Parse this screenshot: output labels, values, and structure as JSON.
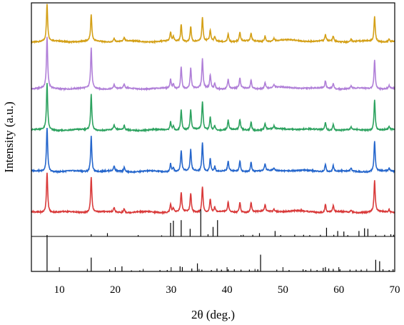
{
  "chart_data": {
    "type": "line",
    "xlabel": "2θ (deg.)",
    "ylabel": "Intensity (a.u.)",
    "xlim": [
      5,
      70
    ],
    "x_ticks": [
      10,
      20,
      30,
      40,
      50,
      60,
      70
    ],
    "y_tick_labels": "none",
    "grid": false,
    "legend": "none",
    "series": [
      {
        "color": "#d4a017",
        "panel": "patterns",
        "stack_index": 4,
        "baseline": 0,
        "peaks": [
          [
            7.8,
            1.3
          ],
          [
            15.7,
            0.92
          ],
          [
            19.8,
            0.13
          ],
          [
            21.6,
            0.12
          ],
          [
            29.9,
            0.3
          ],
          [
            30.4,
            0.14
          ],
          [
            31.8,
            0.6
          ],
          [
            33.5,
            0.55
          ],
          [
            35.6,
            0.82
          ],
          [
            37.0,
            0.38
          ],
          [
            37.8,
            0.15
          ],
          [
            40.2,
            0.28
          ],
          [
            42.3,
            0.32
          ],
          [
            44.3,
            0.28
          ],
          [
            46.8,
            0.2
          ],
          [
            48.4,
            0.1
          ],
          [
            57.6,
            0.22
          ],
          [
            59.0,
            0.18
          ],
          [
            62.2,
            0.09
          ],
          [
            66.4,
            0.88
          ],
          [
            69.0,
            0.1
          ]
        ]
      },
      {
        "color": "#b07fd8",
        "panel": "patterns",
        "stack_index": 3,
        "baseline": 0,
        "peaks": [
          [
            7.8,
            1.8
          ],
          [
            15.7,
            1.42
          ],
          [
            19.8,
            0.15
          ],
          [
            21.6,
            0.14
          ],
          [
            29.9,
            0.32
          ],
          [
            30.4,
            0.15
          ],
          [
            31.8,
            0.78
          ],
          [
            33.5,
            0.72
          ],
          [
            35.6,
            1.02
          ],
          [
            37.0,
            0.48
          ],
          [
            37.8,
            0.18
          ],
          [
            40.2,
            0.34
          ],
          [
            42.3,
            0.36
          ],
          [
            44.3,
            0.3
          ],
          [
            46.8,
            0.22
          ],
          [
            48.4,
            0.1
          ],
          [
            57.6,
            0.26
          ],
          [
            59.0,
            0.2
          ],
          [
            62.2,
            0.09
          ],
          [
            66.4,
            1.02
          ],
          [
            69.0,
            0.1
          ]
        ]
      },
      {
        "color": "#2ca25f",
        "panel": "patterns",
        "stack_index": 2,
        "baseline": 0,
        "peaks": [
          [
            7.8,
            1.62
          ],
          [
            15.7,
            1.25
          ],
          [
            19.8,
            0.16
          ],
          [
            21.6,
            0.14
          ],
          [
            29.9,
            0.3
          ],
          [
            30.4,
            0.14
          ],
          [
            31.8,
            0.72
          ],
          [
            33.5,
            0.7
          ],
          [
            35.6,
            0.98
          ],
          [
            37.0,
            0.46
          ],
          [
            37.8,
            0.17
          ],
          [
            40.2,
            0.34
          ],
          [
            42.3,
            0.36
          ],
          [
            44.3,
            0.3
          ],
          [
            46.8,
            0.22
          ],
          [
            48.4,
            0.1
          ],
          [
            57.6,
            0.28
          ],
          [
            59.0,
            0.22
          ],
          [
            62.2,
            0.09
          ],
          [
            66.4,
            1.08
          ],
          [
            69.0,
            0.1
          ]
        ]
      },
      {
        "color": "#2566cc",
        "panel": "patterns",
        "stack_index": 1,
        "baseline": 0,
        "peaks": [
          [
            7.8,
            1.55
          ],
          [
            15.7,
            1.25
          ],
          [
            19.8,
            0.18
          ],
          [
            21.6,
            0.16
          ],
          [
            29.9,
            0.3
          ],
          [
            30.4,
            0.14
          ],
          [
            31.8,
            0.72
          ],
          [
            33.5,
            0.74
          ],
          [
            35.6,
            1.02
          ],
          [
            37.0,
            0.48
          ],
          [
            37.8,
            0.18
          ],
          [
            40.2,
            0.34
          ],
          [
            42.3,
            0.38
          ],
          [
            44.3,
            0.34
          ],
          [
            46.8,
            0.24
          ],
          [
            48.4,
            0.1
          ],
          [
            57.6,
            0.28
          ],
          [
            59.0,
            0.22
          ],
          [
            62.2,
            0.09
          ],
          [
            66.4,
            1.08
          ],
          [
            69.0,
            0.1
          ]
        ]
      },
      {
        "color": "#d93a3a",
        "panel": "patterns",
        "stack_index": 0,
        "baseline": 0,
        "peaks": [
          [
            7.8,
            1.42
          ],
          [
            15.7,
            1.25
          ],
          [
            19.8,
            0.16
          ],
          [
            21.6,
            0.14
          ],
          [
            29.9,
            0.3
          ],
          [
            30.4,
            0.14
          ],
          [
            31.8,
            0.68
          ],
          [
            33.5,
            0.66
          ],
          [
            35.6,
            0.92
          ],
          [
            37.0,
            0.46
          ],
          [
            37.8,
            0.17
          ],
          [
            40.2,
            0.34
          ],
          [
            42.3,
            0.38
          ],
          [
            44.3,
            0.34
          ],
          [
            46.8,
            0.24
          ],
          [
            48.4,
            0.1
          ],
          [
            57.6,
            0.28
          ],
          [
            59.0,
            0.22
          ],
          [
            62.2,
            0.09
          ],
          [
            66.4,
            1.08
          ],
          [
            69.0,
            0.1
          ]
        ]
      },
      {
        "color": "#000000",
        "panel": "reference-1",
        "type": "stick",
        "sticks": [
          [
            15.7,
            0.08
          ],
          [
            18.6,
            0.12
          ],
          [
            24.1,
            0.05
          ],
          [
            28.3,
            0.04
          ],
          [
            29.9,
            0.5
          ],
          [
            30.4,
            0.58
          ],
          [
            31.8,
            0.6
          ],
          [
            33.4,
            0.28
          ],
          [
            35.3,
            1.0
          ],
          [
            36.6,
            0.08
          ],
          [
            37.5,
            0.35
          ],
          [
            38.3,
            0.6
          ],
          [
            42.5,
            0.05
          ],
          [
            42.9,
            0.06
          ],
          [
            44.6,
            0.06
          ],
          [
            45.8,
            0.12
          ],
          [
            48.6,
            0.2
          ],
          [
            49.6,
            0.05
          ],
          [
            52.1,
            0.06
          ],
          [
            53.7,
            0.06
          ],
          [
            54.8,
            0.05
          ],
          [
            56.7,
            0.06
          ],
          [
            57.8,
            0.32
          ],
          [
            59.1,
            0.06
          ],
          [
            59.8,
            0.2
          ],
          [
            60.9,
            0.18
          ],
          [
            61.6,
            0.05
          ],
          [
            63.6,
            0.2
          ],
          [
            64.6,
            0.3
          ],
          [
            65.2,
            0.28
          ],
          [
            66.6,
            0.06
          ],
          [
            68.2,
            0.06
          ],
          [
            69.3,
            0.08
          ],
          [
            69.8,
            0.06
          ]
        ]
      },
      {
        "color": "#000000",
        "panel": "reference-2",
        "type": "stick",
        "sticks": [
          [
            7.8,
            1.0
          ],
          [
            15.7,
            0.38
          ],
          [
            19.0,
            0.06
          ],
          [
            21.2,
            0.14
          ],
          [
            22.9,
            0.03
          ],
          [
            24.4,
            0.03
          ],
          [
            28.0,
            0.04
          ],
          [
            29.3,
            0.04
          ],
          [
            31.6,
            0.14
          ],
          [
            32.0,
            0.12
          ],
          [
            33.7,
            0.08
          ],
          [
            34.7,
            0.22
          ],
          [
            35.5,
            0.05
          ],
          [
            37.2,
            0.04
          ],
          [
            38.2,
            0.08
          ],
          [
            39.0,
            0.05
          ],
          [
            40.2,
            0.06
          ],
          [
            41.3,
            0.06
          ],
          [
            42.5,
            0.05
          ],
          [
            44.0,
            0.05
          ],
          [
            45.5,
            0.06
          ],
          [
            46.0,
            0.46
          ],
          [
            48.9,
            0.05
          ],
          [
            51.1,
            0.04
          ],
          [
            53.6,
            0.06
          ],
          [
            54.1,
            0.04
          ],
          [
            56.1,
            0.04
          ],
          [
            57.2,
            0.1
          ],
          [
            57.6,
            0.12
          ],
          [
            58.2,
            0.08
          ],
          [
            59.0,
            0.07
          ],
          [
            60.2,
            0.06
          ],
          [
            62.0,
            0.05
          ],
          [
            63.1,
            0.05
          ],
          [
            64.0,
            0.05
          ],
          [
            66.6,
            0.32
          ],
          [
            67.3,
            0.28
          ],
          [
            67.9,
            0.06
          ],
          [
            69.0,
            0.04
          ],
          [
            69.7,
            0.06
          ]
        ]
      }
    ]
  }
}
